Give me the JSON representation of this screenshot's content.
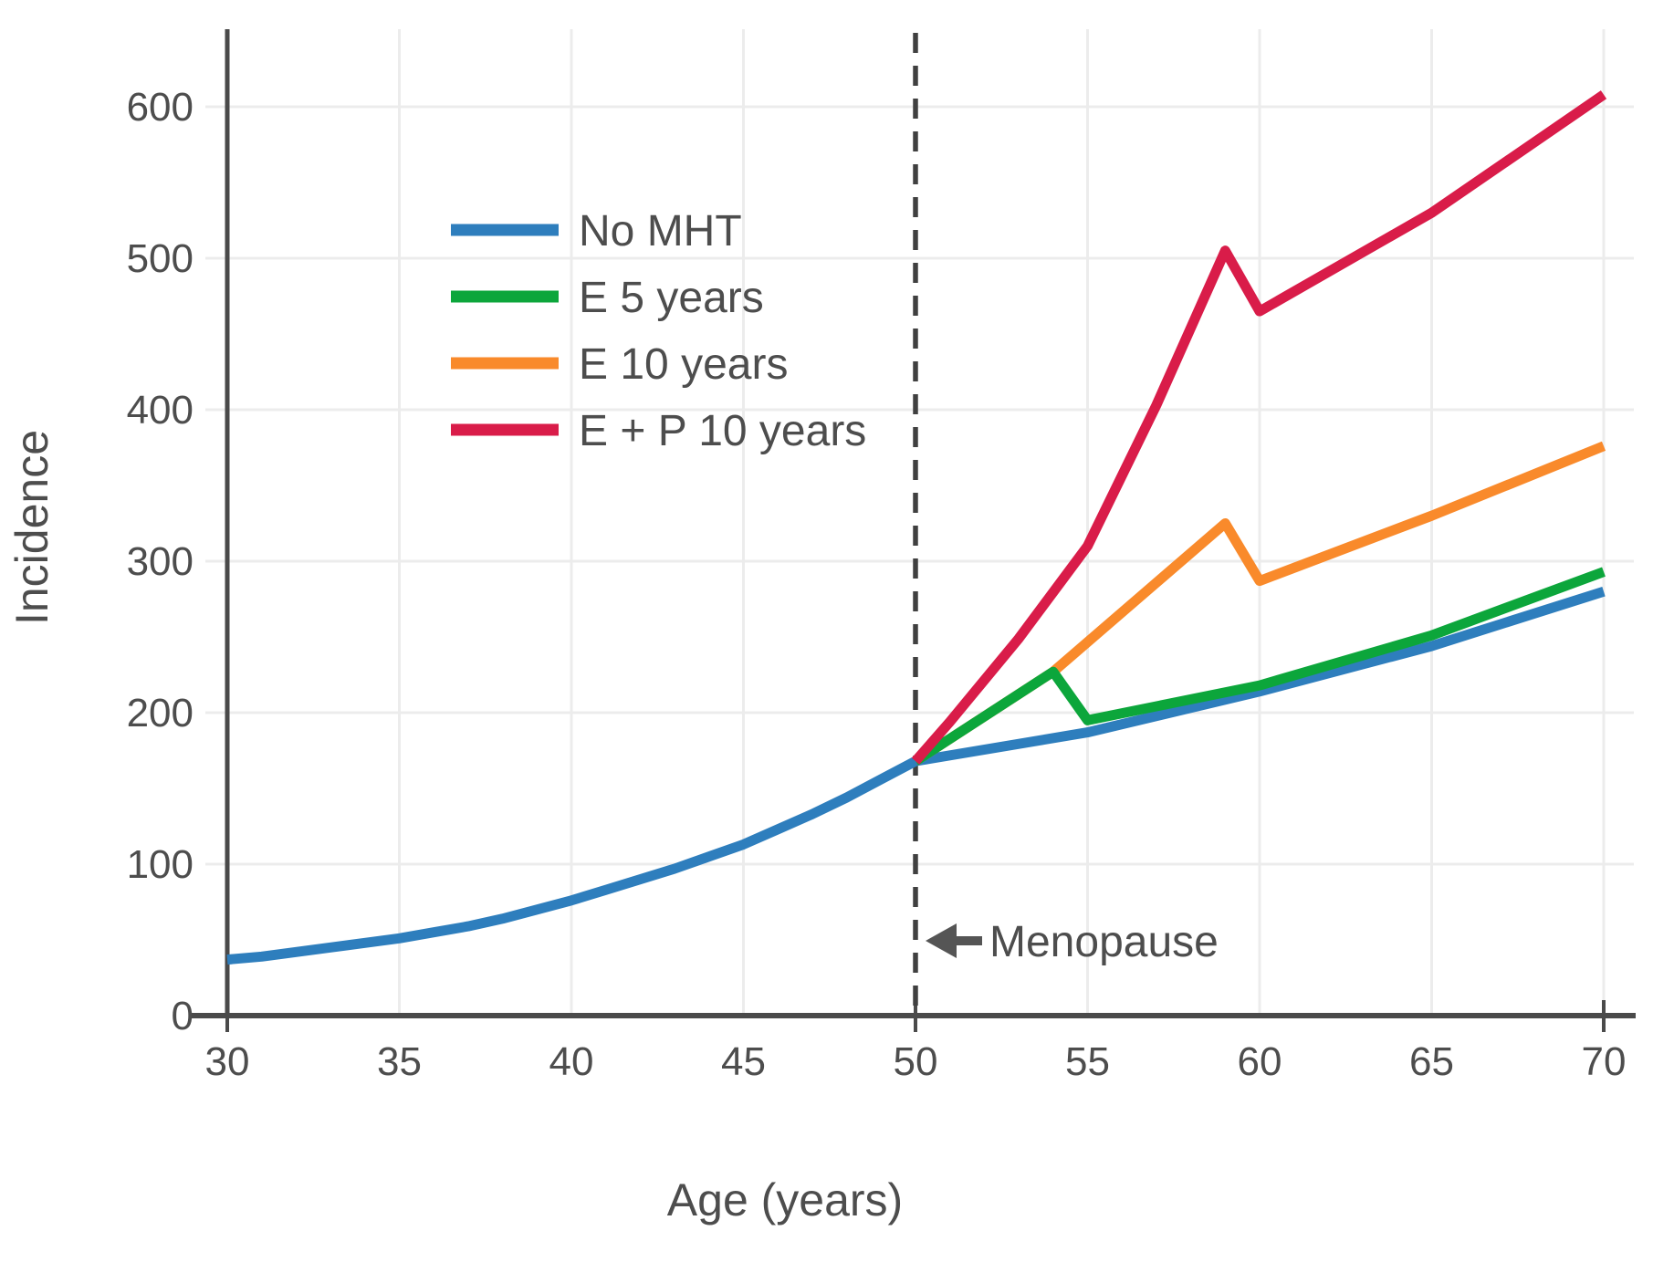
{
  "chart_data": {
    "type": "line",
    "title": "",
    "xlabel": "Age (years)",
    "ylabel": "Incidence",
    "xlim": [
      30,
      70.9
    ],
    "ylim": [
      0,
      650
    ],
    "x_tick_labels": [
      30,
      35,
      40,
      45,
      50,
      55,
      60,
      65,
      70
    ],
    "x_dark_ticks": [
      30,
      50,
      70
    ],
    "x_gridlines": [
      35,
      40,
      45,
      55,
      60,
      65,
      70
    ],
    "y_ticks": [
      0,
      100,
      200,
      300,
      400,
      500,
      600
    ],
    "grid": true,
    "legend_position": "upper-left-inside",
    "draw_order": [
      0,
      2,
      1,
      3
    ],
    "series": [
      {
        "name": "No MHT",
        "color": "#2e7ebd",
        "points": [
          [
            30,
            37
          ],
          [
            31,
            39
          ],
          [
            32,
            42
          ],
          [
            33,
            45
          ],
          [
            34,
            48
          ],
          [
            35,
            51
          ],
          [
            36,
            55
          ],
          [
            37,
            59
          ],
          [
            38,
            64
          ],
          [
            39,
            70
          ],
          [
            40,
            76
          ],
          [
            41,
            83
          ],
          [
            42,
            90
          ],
          [
            43,
            97
          ],
          [
            44,
            105
          ],
          [
            45,
            113
          ],
          [
            46,
            123
          ],
          [
            47,
            133
          ],
          [
            48,
            144
          ],
          [
            49,
            156
          ],
          [
            50,
            168
          ],
          [
            55,
            187
          ],
          [
            60,
            214
          ],
          [
            65,
            244
          ],
          [
            70,
            280
          ]
        ]
      },
      {
        "name": "E 5 years",
        "color": "#0ca63b",
        "points": [
          [
            50,
            168
          ],
          [
            54,
            227
          ],
          [
            55,
            195
          ],
          [
            60,
            218
          ],
          [
            65,
            251
          ],
          [
            70,
            293
          ]
        ]
      },
      {
        "name": "E 10 years",
        "color": "#f98a2b",
        "points": [
          [
            50,
            168
          ],
          [
            54,
            227
          ],
          [
            59,
            325
          ],
          [
            60,
            287
          ],
          [
            65,
            330
          ],
          [
            70,
            376
          ]
        ]
      },
      {
        "name": "E + P 10 years",
        "color": "#d91c49",
        "points": [
          [
            50,
            168
          ],
          [
            51,
            194
          ],
          [
            53,
            249
          ],
          [
            55,
            310
          ],
          [
            57,
            403
          ],
          [
            59,
            505
          ],
          [
            60,
            465
          ],
          [
            65,
            530
          ],
          [
            70,
            608
          ]
        ]
      }
    ],
    "annotation": {
      "text": "Menopause",
      "arrow_direction": "left",
      "at_x": 50,
      "at_y_value": 50
    },
    "event_line": {
      "x": 50,
      "style": "dashed",
      "color": "#404040"
    }
  },
  "style_colors": {
    "axis": "#4a4a4a",
    "grid": "#ececec",
    "text": "#4d4d4d"
  }
}
